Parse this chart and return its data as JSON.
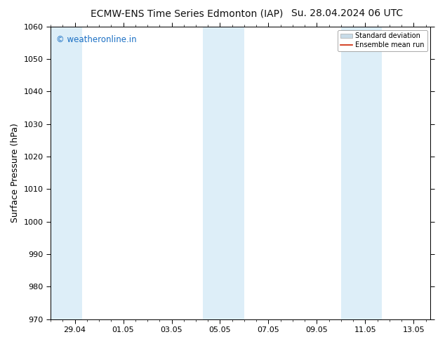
{
  "title_left": "ECMW-ENS Time Series Edmonton (IAP)",
  "title_right": "Su. 28.04.2024 06 UTC",
  "ylabel": "Surface Pressure (hPa)",
  "ylim": [
    970,
    1060
  ],
  "yticks": [
    970,
    980,
    990,
    1000,
    1010,
    1020,
    1030,
    1040,
    1050,
    1060
  ],
  "watermark": "© weatheronline.in",
  "watermark_color": "#1a6fc4",
  "bg_color": "#ffffff",
  "plot_bg_color": "#ffffff",
  "shade_color": "#ddeef8",
  "x_tick_labels": [
    "29.04",
    "01.05",
    "03.05",
    "05.05",
    "07.05",
    "09.05",
    "11.05",
    "13.05"
  ],
  "x_tick_positions": [
    1,
    3,
    5,
    7,
    9,
    11,
    13,
    15
  ],
  "xlim": [
    0,
    15.7
  ],
  "shaded_bands": [
    {
      "start": 0.0,
      "end": 1.3
    },
    {
      "start": 6.3,
      "end": 8.0
    },
    {
      "start": 12.0,
      "end": 13.7
    }
  ],
  "minor_xtick_positions": [
    0,
    0.5,
    1,
    1.5,
    2,
    2.5,
    3,
    3.5,
    4,
    4.5,
    5,
    5.5,
    6,
    6.5,
    7,
    7.5,
    8,
    8.5,
    9,
    9.5,
    10,
    10.5,
    11,
    11.5,
    12,
    12.5,
    13,
    13.5,
    14,
    14.5,
    15,
    15.5
  ],
  "legend_std_color": "#c8dce8",
  "legend_std_edge": "#aaaaaa",
  "legend_mean_color": "#cc2200",
  "title_fontsize": 10,
  "axis_label_fontsize": 9,
  "tick_fontsize": 8,
  "watermark_fontsize": 8.5
}
